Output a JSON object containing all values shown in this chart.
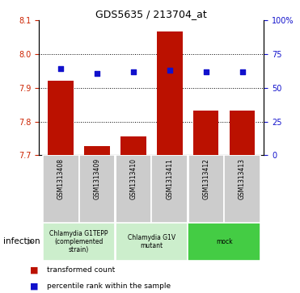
{
  "title": "GDS5635 / 213704_at",
  "samples": [
    "GSM1313408",
    "GSM1313409",
    "GSM1313410",
    "GSM1313411",
    "GSM1313412",
    "GSM1313413"
  ],
  "bar_values": [
    7.922,
    7.728,
    7.755,
    8.068,
    7.832,
    7.832
  ],
  "percentile_values": [
    7.958,
    7.944,
    7.948,
    7.953,
    7.948,
    7.948
  ],
  "bar_color": "#bb1100",
  "dot_color": "#1111cc",
  "ylim_left": [
    7.7,
    8.1
  ],
  "ylim_right": [
    0,
    100
  ],
  "yticks_left": [
    7.7,
    7.8,
    7.9,
    8.0,
    8.1
  ],
  "yticks_right": [
    0,
    25,
    50,
    75,
    100
  ],
  "ytick_labels_right": [
    "0",
    "25",
    "50",
    "75",
    "100%"
  ],
  "grid_values": [
    7.8,
    7.9,
    8.0
  ],
  "bar_width": 0.7,
  "group_colors": [
    "#cceecc",
    "#cceecc",
    "#44cc44"
  ],
  "group_labels": [
    "Chlamydia G1TEPP\n(complemented\nstrain)",
    "Chlamydia G1V\nmutant",
    "mock"
  ],
  "group_ranges": [
    [
      0,
      1
    ],
    [
      2,
      3
    ],
    [
      4,
      5
    ]
  ],
  "factor_label": "infection",
  "legend_bar_label": "transformed count",
  "legend_dot_label": "percentile rank within the sample",
  "bg_color": "#ffffff",
  "tick_label_color_left": "#cc2200",
  "tick_label_color_right": "#1111cc",
  "sample_bg_color": "#cccccc"
}
